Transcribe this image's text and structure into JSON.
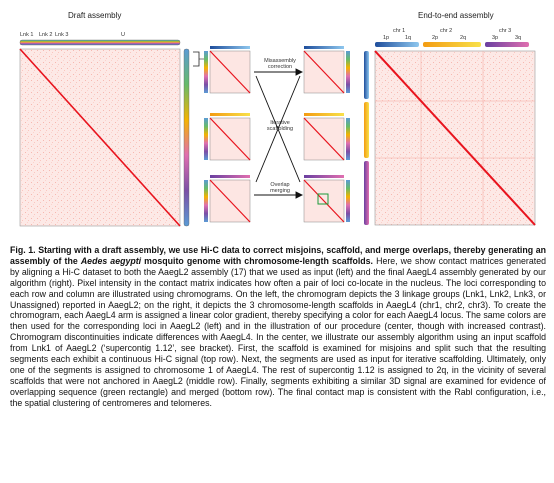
{
  "figure": {
    "left_title": "Draft assembly",
    "right_title": "End-to-end assembly",
    "left_chromogram_labels": [
      "Lnk 1",
      "Lnk 2",
      "Lnk 3",
      "U"
    ],
    "right_chr_labels": [
      "chr 1",
      "chr 2",
      "chr 3"
    ],
    "right_arm_labels": [
      "1p",
      "1q",
      "2p",
      "2q",
      "3p",
      "3q"
    ],
    "step_labels": [
      "Misassembly correction",
      "Iterative scaffolding",
      "Overlap merging"
    ],
    "colors": {
      "heatmap_bg": "#fde6e3",
      "heatmap_line": "#e8141e",
      "chr1": "#5b9bd5",
      "chr2": "#f4b400",
      "chr3": "#7b4fa6",
      "lnk": "#66bb6a",
      "accent_green": "#1a9a3a"
    }
  },
  "caption": {
    "fig_label": "Fig. 1.",
    "bold_lead_1": " Starting with a draft assembly, we use Hi-C data to correct misjoins, scaffold, and merge overlaps, thereby generating an assembly of the ",
    "species": "Aedes aegypti",
    "bold_lead_2": " mosquito genome with chromosome-length scaffolds.",
    "body": " Here, we show contact matrices generated by aligning a Hi-C dataset to both the AaegL2 assembly (17) that we used as input (left) and the final AaegL4 assembly generated by our algorithm (right). Pixel intensity in the contact matrix indicates how often a pair of loci co-locate in the nucleus. The loci corresponding to each row and column are illustrated using chromograms. On the left, the chromogram depicts the 3 linkage groups (Lnk1, Lnk2, Lnk3, or Unassigned) reported in AaegL2; on the right, it depicts the 3 chromosome-length scaffolds in AaegL4 (chr1, chr2, chr3). To create the chromogram, each AaegL4 arm is assigned a linear color gradient, thereby specifying a color for each AaegL4 locus. The same colors are then used for the corresponding loci in AaegL2 (left) and in the illustration of our procedure (center, though with increased contrast). Chromogram discontinuities indicate differences with AaegL4. In the center, we illustrate our assembly algorithm using an input scaffold from Lnk1 of AaegL2 (‘supercontig 1.12’, see bracket). First, the scaffold is examined for misjoins and split such that the resulting segments each exhibit a continuous Hi-C signal (top row). Next, the segments are used as input for iterative scaffolding. Ultimately, only one of the segments is assigned to chromosome 1 of AaegL4. The rest of supercontig 1.12 is assigned to 2q, in the vicinity of several scaffolds that were not anchored in AaegL2 (middle row). Finally, segments exhibiting a similar 3D signal are examined for evidence of overlapping sequence (green rectangle) and merged (bottom row). The final contact map is consistent with the Rabl configuration, i.e., the spatial clustering of centromeres and telomeres."
  }
}
